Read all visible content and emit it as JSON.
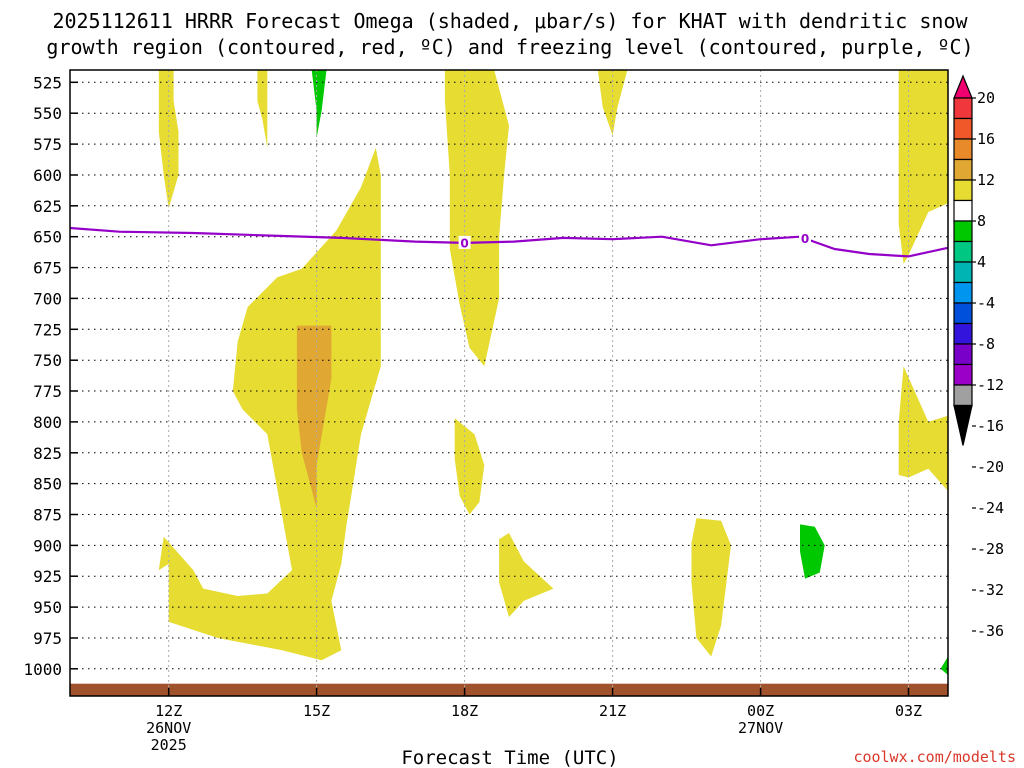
{
  "chart_data": {
    "type": "heatmap",
    "title_line1": "2025112611 HRRR Forecast Omega (shaded, μbar/s) for KHAT with dendritic snow",
    "title_line2": "growth region (contoured, red, ºC) and freezing level (contoured, purple, ºC)",
    "xlabel": "Forecast Time (UTC)",
    "credit": "coolwx.com/modelts",
    "y_ticks": [
      525,
      550,
      575,
      600,
      625,
      650,
      675,
      700,
      725,
      750,
      775,
      800,
      825,
      850,
      875,
      900,
      925,
      950,
      975,
      1000
    ],
    "y_range_hPa": [
      515,
      1022
    ],
    "x_range_hours": [
      -1.0,
      16.8
    ],
    "x_ticks": [
      {
        "hour": 1,
        "line1": "12Z",
        "line2": "26NOV",
        "line3": "2025"
      },
      {
        "hour": 4,
        "line1": "15Z",
        "line2": "",
        "line3": ""
      },
      {
        "hour": 7,
        "line1": "18Z",
        "line2": "",
        "line3": ""
      },
      {
        "hour": 10,
        "line1": "21Z",
        "line2": "",
        "line3": ""
      },
      {
        "hour": 13,
        "line1": "00Z",
        "line2": "27NOV",
        "line3": ""
      },
      {
        "hour": 16,
        "line1": "03Z",
        "line2": "",
        "line3": ""
      }
    ],
    "colorbar": {
      "labels": [
        "20",
        "16",
        "12",
        "8",
        "4",
        "-4",
        "-8",
        "-12",
        "-16",
        "-20",
        "-24",
        "-28",
        "-32",
        "-36"
      ],
      "colors": [
        "#f0006e",
        "#f0383c",
        "#f0582a",
        "#e88a2a",
        "#e0a832",
        "#e6dc32",
        "#ffffff",
        "#00c800",
        "#00c882",
        "#00b4b4",
        "#0096f0",
        "#0050dc",
        "#3214dc",
        "#7800c8",
        "#9a00c8",
        "#a0a0a0",
        "#000000"
      ]
    },
    "freezing_level": {
      "label": "0",
      "color": "#9400c8",
      "points": [
        [
          -1.0,
          643
        ],
        [
          0.0,
          646
        ],
        [
          1.5,
          647
        ],
        [
          3.0,
          649
        ],
        [
          4.5,
          651
        ],
        [
          6.0,
          654
        ],
        [
          7.0,
          655
        ],
        [
          8.0,
          654
        ],
        [
          9.0,
          651
        ],
        [
          10.0,
          652
        ],
        [
          11.0,
          650
        ],
        [
          12.0,
          657
        ],
        [
          13.0,
          652
        ],
        [
          13.8,
          650
        ],
        [
          14.5,
          660
        ],
        [
          15.2,
          664
        ],
        [
          16.0,
          666
        ],
        [
          16.8,
          659
        ]
      ],
      "label_at_hours": [
        7.0,
        13.9
      ]
    },
    "omega_regions": [
      {
        "level": "4 to 8",
        "color": "#e6dc32",
        "points": [
          [
            0.8,
            515
          ],
          [
            1.1,
            515
          ],
          [
            1.1,
            540
          ],
          [
            1.2,
            565
          ],
          [
            1.2,
            600
          ],
          [
            1.0,
            627
          ],
          [
            0.9,
            600
          ],
          [
            0.8,
            565
          ]
        ]
      },
      {
        "level": "4 to 8",
        "color": "#e6dc32",
        "points": [
          [
            2.8,
            515
          ],
          [
            3.0,
            515
          ],
          [
            3.0,
            550
          ],
          [
            3.0,
            578
          ],
          [
            2.9,
            555
          ],
          [
            2.8,
            540
          ]
        ]
      },
      {
        "level": "-4 to -8",
        "color": "#00c800",
        "points": [
          [
            3.9,
            515
          ],
          [
            4.2,
            515
          ],
          [
            4.1,
            548
          ],
          [
            4.0,
            570
          ],
          [
            4.0,
            548
          ]
        ]
      },
      {
        "level": "4 to 8",
        "color": "#e6dc32",
        "points": [
          [
            6.6,
            515
          ],
          [
            7.6,
            515
          ],
          [
            7.9,
            560
          ],
          [
            7.8,
            600
          ],
          [
            7.7,
            650
          ],
          [
            7.7,
            700
          ],
          [
            7.4,
            755
          ],
          [
            7.1,
            740
          ],
          [
            6.9,
            705
          ],
          [
            6.7,
            660
          ],
          [
            6.7,
            600
          ],
          [
            6.6,
            540
          ]
        ]
      },
      {
        "level": "4 to 8",
        "color": "#e6dc32",
        "points": [
          [
            9.7,
            515
          ],
          [
            10.3,
            515
          ],
          [
            10.1,
            545
          ],
          [
            10.0,
            568
          ],
          [
            9.8,
            545
          ]
        ]
      },
      {
        "level": "4 to 8",
        "color": "#e6dc32",
        "points": [
          [
            15.8,
            515
          ],
          [
            16.8,
            515
          ],
          [
            16.8,
            623
          ],
          [
            16.4,
            630
          ],
          [
            16.0,
            665
          ],
          [
            15.9,
            672
          ],
          [
            15.8,
            640
          ],
          [
            15.8,
            580
          ]
        ]
      },
      {
        "level": "4 to 8",
        "color": "#e6dc32",
        "points": [
          [
            5.2,
            578
          ],
          [
            5.3,
            600
          ],
          [
            5.3,
            650
          ],
          [
            5.3,
            700
          ],
          [
            5.3,
            755
          ],
          [
            4.9,
            810
          ],
          [
            4.7,
            860
          ],
          [
            4.6,
            885
          ],
          [
            4.5,
            915
          ],
          [
            4.3,
            945
          ],
          [
            4.5,
            985
          ],
          [
            4.1,
            993
          ],
          [
            3.3,
            985
          ],
          [
            2.0,
            975
          ],
          [
            1.0,
            962
          ],
          [
            1.0,
            935
          ],
          [
            1.0,
            915
          ],
          [
            0.8,
            920
          ],
          [
            0.9,
            893
          ],
          [
            1.5,
            920
          ],
          [
            1.7,
            935
          ],
          [
            2.4,
            941
          ],
          [
            3.0,
            939
          ],
          [
            3.5,
            920
          ],
          [
            3.0,
            810
          ],
          [
            2.5,
            790
          ],
          [
            2.3,
            775
          ],
          [
            2.4,
            735
          ],
          [
            2.6,
            707
          ],
          [
            3.2,
            683
          ],
          [
            3.7,
            676
          ],
          [
            4.4,
            645
          ],
          [
            4.9,
            610
          ]
        ]
      },
      {
        "level": "8 to 12",
        "color": "#e0a832",
        "points": [
          [
            3.6,
            722
          ],
          [
            4.3,
            722
          ],
          [
            4.3,
            765
          ],
          [
            4.0,
            835
          ],
          [
            4.0,
            870
          ],
          [
            3.7,
            825
          ],
          [
            3.6,
            790
          ],
          [
            3.6,
            750
          ]
        ]
      },
      {
        "level": "4 to 8",
        "color": "#e6dc32",
        "points": [
          [
            6.8,
            797
          ],
          [
            7.2,
            810
          ],
          [
            7.4,
            835
          ],
          [
            7.3,
            865
          ],
          [
            7.1,
            875
          ],
          [
            6.9,
            860
          ],
          [
            6.8,
            830
          ]
        ]
      },
      {
        "level": "4 to 8",
        "color": "#e6dc32",
        "points": [
          [
            7.7,
            895
          ],
          [
            7.9,
            890
          ],
          [
            8.2,
            913
          ],
          [
            8.8,
            935
          ],
          [
            8.2,
            945
          ],
          [
            7.9,
            958
          ],
          [
            7.7,
            930
          ]
        ]
      },
      {
        "level": "4 to 8",
        "color": "#e6dc32",
        "points": [
          [
            11.7,
            878
          ],
          [
            12.2,
            880
          ],
          [
            12.4,
            900
          ],
          [
            12.2,
            965
          ],
          [
            12.0,
            990
          ],
          [
            11.7,
            975
          ],
          [
            11.6,
            930
          ],
          [
            11.6,
            898
          ]
        ]
      },
      {
        "level": "-4 to -8",
        "color": "#00c800",
        "points": [
          [
            13.8,
            883
          ],
          [
            14.1,
            885
          ],
          [
            14.3,
            900
          ],
          [
            14.2,
            922
          ],
          [
            13.9,
            927
          ],
          [
            13.8,
            905
          ]
        ]
      },
      {
        "level": "4 to 8",
        "color": "#e6dc32",
        "points": [
          [
            15.9,
            755
          ],
          [
            16.4,
            800
          ],
          [
            16.8,
            795
          ],
          [
            16.8,
            856
          ],
          [
            16.4,
            838
          ],
          [
            16.0,
            845
          ],
          [
            15.8,
            843
          ],
          [
            15.8,
            800
          ]
        ]
      },
      {
        "level": "-4 to -8",
        "color": "#00c800",
        "points": [
          [
            16.65,
            1000
          ],
          [
            16.8,
            990
          ],
          [
            16.8,
            1005
          ]
        ]
      }
    ],
    "terrain": {
      "color": "#a0522d",
      "pressure_top_hPa": 1012
    }
  }
}
